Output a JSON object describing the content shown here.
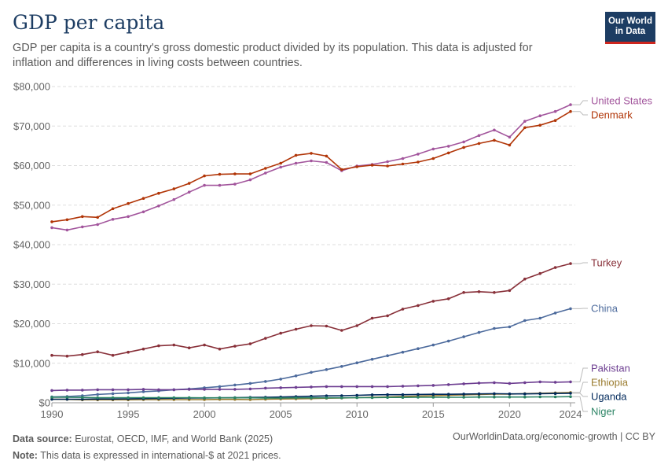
{
  "header": {
    "title": "GDP per capita",
    "subtitle": "GDP per capita is a country's gross domestic product divided by its population. This data is adjusted for inflation and differences in living costs between countries.",
    "logo_line1": "Our World",
    "logo_line2": "in Data"
  },
  "footer": {
    "source_label": "Data source:",
    "source_text": "Eurostat, OECD, IMF, and World Bank (2025)",
    "note_label": "Note:",
    "note_text": "This data is expressed in international-$ at 2021 prices.",
    "right_text": "OurWorldinData.org/economic-growth | CC BY"
  },
  "chart_data": {
    "type": "line",
    "title": "GDP per capita",
    "xlabel": "",
    "ylabel": "",
    "xlim": [
      1990,
      2024
    ],
    "ylim": [
      0,
      80000
    ],
    "y_ticks": [
      0,
      10000,
      20000,
      30000,
      40000,
      50000,
      60000,
      70000,
      80000
    ],
    "y_tick_labels": [
      "$0",
      "$10,000",
      "$20,000",
      "$30,000",
      "$40,000",
      "$50,000",
      "$60,000",
      "$70,000",
      "$80,000"
    ],
    "x_ticks": [
      1990,
      1995,
      2000,
      2005,
      2010,
      2015,
      2020,
      2024
    ],
    "x_tick_labels": [
      "1990",
      "1995",
      "2000",
      "2005",
      "2010",
      "2015",
      "2020",
      "2024"
    ],
    "grid": "horizontal dashed",
    "legend": "right end labels",
    "x": [
      1990,
      1991,
      1992,
      1993,
      1994,
      1995,
      1996,
      1997,
      1998,
      1999,
      2000,
      2001,
      2002,
      2003,
      2004,
      2005,
      2006,
      2007,
      2008,
      2009,
      2010,
      2011,
      2012,
      2013,
      2014,
      2015,
      2016,
      2017,
      2018,
      2019,
      2020,
      2021,
      2022,
      2023,
      2024
    ],
    "series": [
      {
        "name": "United States",
        "color": "#a2559c",
        "values": [
          44300,
          43700,
          44500,
          45100,
          46400,
          47100,
          48300,
          49800,
          51400,
          53300,
          55000,
          55000,
          55300,
          56400,
          58100,
          59600,
          60600,
          61200,
          60800,
          58700,
          59900,
          60300,
          61000,
          61800,
          62900,
          64200,
          64900,
          66000,
          67600,
          69000,
          67200,
          71200,
          72600,
          73700,
          75400
        ]
      },
      {
        "name": "Denmark",
        "color": "#b13507",
        "values": [
          45800,
          46300,
          47100,
          46900,
          49100,
          50400,
          51700,
          53000,
          54100,
          55500,
          57400,
          57800,
          57900,
          57900,
          59300,
          60600,
          62600,
          63100,
          62400,
          59000,
          59700,
          60100,
          59900,
          60400,
          60900,
          61800,
          63200,
          64600,
          65600,
          66400,
          65200,
          69600,
          70200,
          71400,
          73700
        ]
      },
      {
        "name": "Turkey",
        "color": "#883039",
        "values": [
          12000,
          11800,
          12200,
          12900,
          12000,
          12800,
          13600,
          14400,
          14600,
          13900,
          14600,
          13600,
          14300,
          14900,
          16300,
          17600,
          18600,
          19500,
          19400,
          18300,
          19500,
          21400,
          22000,
          23700,
          24600,
          25700,
          26300,
          27900,
          28100,
          27900,
          28400,
          31300,
          32700,
          34200,
          35200
        ]
      },
      {
        "name": "China",
        "color": "#4c6a9c",
        "values": [
          1500,
          1600,
          1800,
          2100,
          2300,
          2500,
          2800,
          3000,
          3300,
          3500,
          3800,
          4100,
          4500,
          4900,
          5400,
          6000,
          6800,
          7700,
          8400,
          9200,
          10100,
          11000,
          11900,
          12800,
          13700,
          14600,
          15600,
          16700,
          17800,
          18800,
          19200,
          20800,
          21400,
          22700,
          23800
        ]
      },
      {
        "name": "Pakistan",
        "color": "#6d3e91",
        "values": [
          3100,
          3200,
          3200,
          3300,
          3300,
          3300,
          3400,
          3300,
          3300,
          3400,
          3400,
          3400,
          3400,
          3500,
          3700,
          3800,
          3900,
          4000,
          4100,
          4100,
          4100,
          4100,
          4100,
          4200,
          4300,
          4400,
          4600,
          4800,
          5000,
          5100,
          4900,
          5100,
          5300,
          5200,
          5300
        ]
      },
      {
        "name": "Ethiopia",
        "color": "#9a7b2e",
        "values": [
          900,
          850,
          750,
          750,
          750,
          750,
          800,
          800,
          800,
          800,
          800,
          850,
          850,
          800,
          900,
          950,
          1000,
          1050,
          1150,
          1200,
          1300,
          1400,
          1500,
          1600,
          1700,
          1800,
          1900,
          2000,
          2100,
          2200,
          2200,
          2300,
          2400,
          2500,
          2600
        ]
      },
      {
        "name": "Uganda",
        "color": "#00295b",
        "values": [
          900,
          900,
          900,
          950,
          950,
          1000,
          1050,
          1100,
          1150,
          1200,
          1200,
          1250,
          1300,
          1350,
          1400,
          1450,
          1550,
          1650,
          1750,
          1800,
          1900,
          2000,
          2050,
          2050,
          2100,
          2150,
          2150,
          2200,
          2250,
          2300,
          2250,
          2250,
          2300,
          2350,
          2400
        ]
      },
      {
        "name": "Niger",
        "color": "#2c8465",
        "values": [
          1400,
          1400,
          1350,
          1300,
          1300,
          1300,
          1300,
          1300,
          1300,
          1300,
          1250,
          1250,
          1250,
          1250,
          1200,
          1200,
          1250,
          1250,
          1250,
          1250,
          1300,
          1300,
          1350,
          1350,
          1400,
          1400,
          1400,
          1400,
          1450,
          1450,
          1450,
          1450,
          1500,
          1500,
          1550
        ]
      }
    ]
  }
}
